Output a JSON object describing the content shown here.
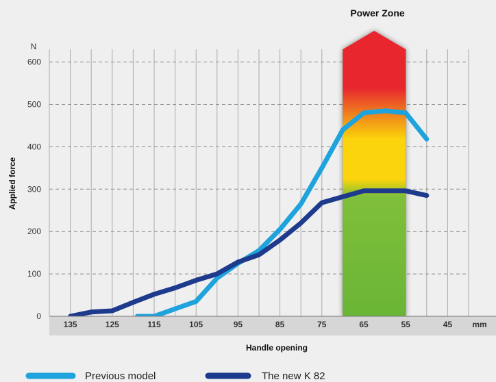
{
  "chart_data": {
    "type": "line",
    "annotation": "Power Zone",
    "ylabel": "Applied force",
    "y_unit": "N",
    "xlabel": "Handle opening",
    "x_unit": "mm",
    "x_reversed": true,
    "xlim": [
      140,
      40
    ],
    "ylim": [
      0,
      630
    ],
    "x_ticks": [
      135,
      125,
      115,
      105,
      95,
      85,
      75,
      65,
      55,
      45
    ],
    "y_ticks": [
      0,
      100,
      200,
      300,
      400,
      500,
      600
    ],
    "grid": true,
    "power_zone": [
      70,
      55
    ],
    "legend_position": "bottom",
    "series": [
      {
        "name": "Previous model",
        "color": "#1fa3dc",
        "x": [
          119,
          115,
          105,
          100,
          95,
          90,
          85,
          80,
          75,
          70,
          65,
          60,
          55,
          50
        ],
        "y": [
          0,
          0,
          35,
          90,
          125,
          155,
          205,
          265,
          350,
          440,
          480,
          485,
          480,
          418
        ]
      },
      {
        "name": "The new K 82",
        "color": "#1e3a8c",
        "x": [
          135,
          130,
          125,
          120,
          115,
          110,
          105,
          100,
          95,
          90,
          85,
          80,
          75,
          70,
          65,
          60,
          55,
          50
        ],
        "y": [
          0,
          10,
          13,
          33,
          52,
          67,
          85,
          100,
          128,
          145,
          180,
          220,
          268,
          282,
          296,
          296,
          296,
          285
        ]
      }
    ]
  }
}
